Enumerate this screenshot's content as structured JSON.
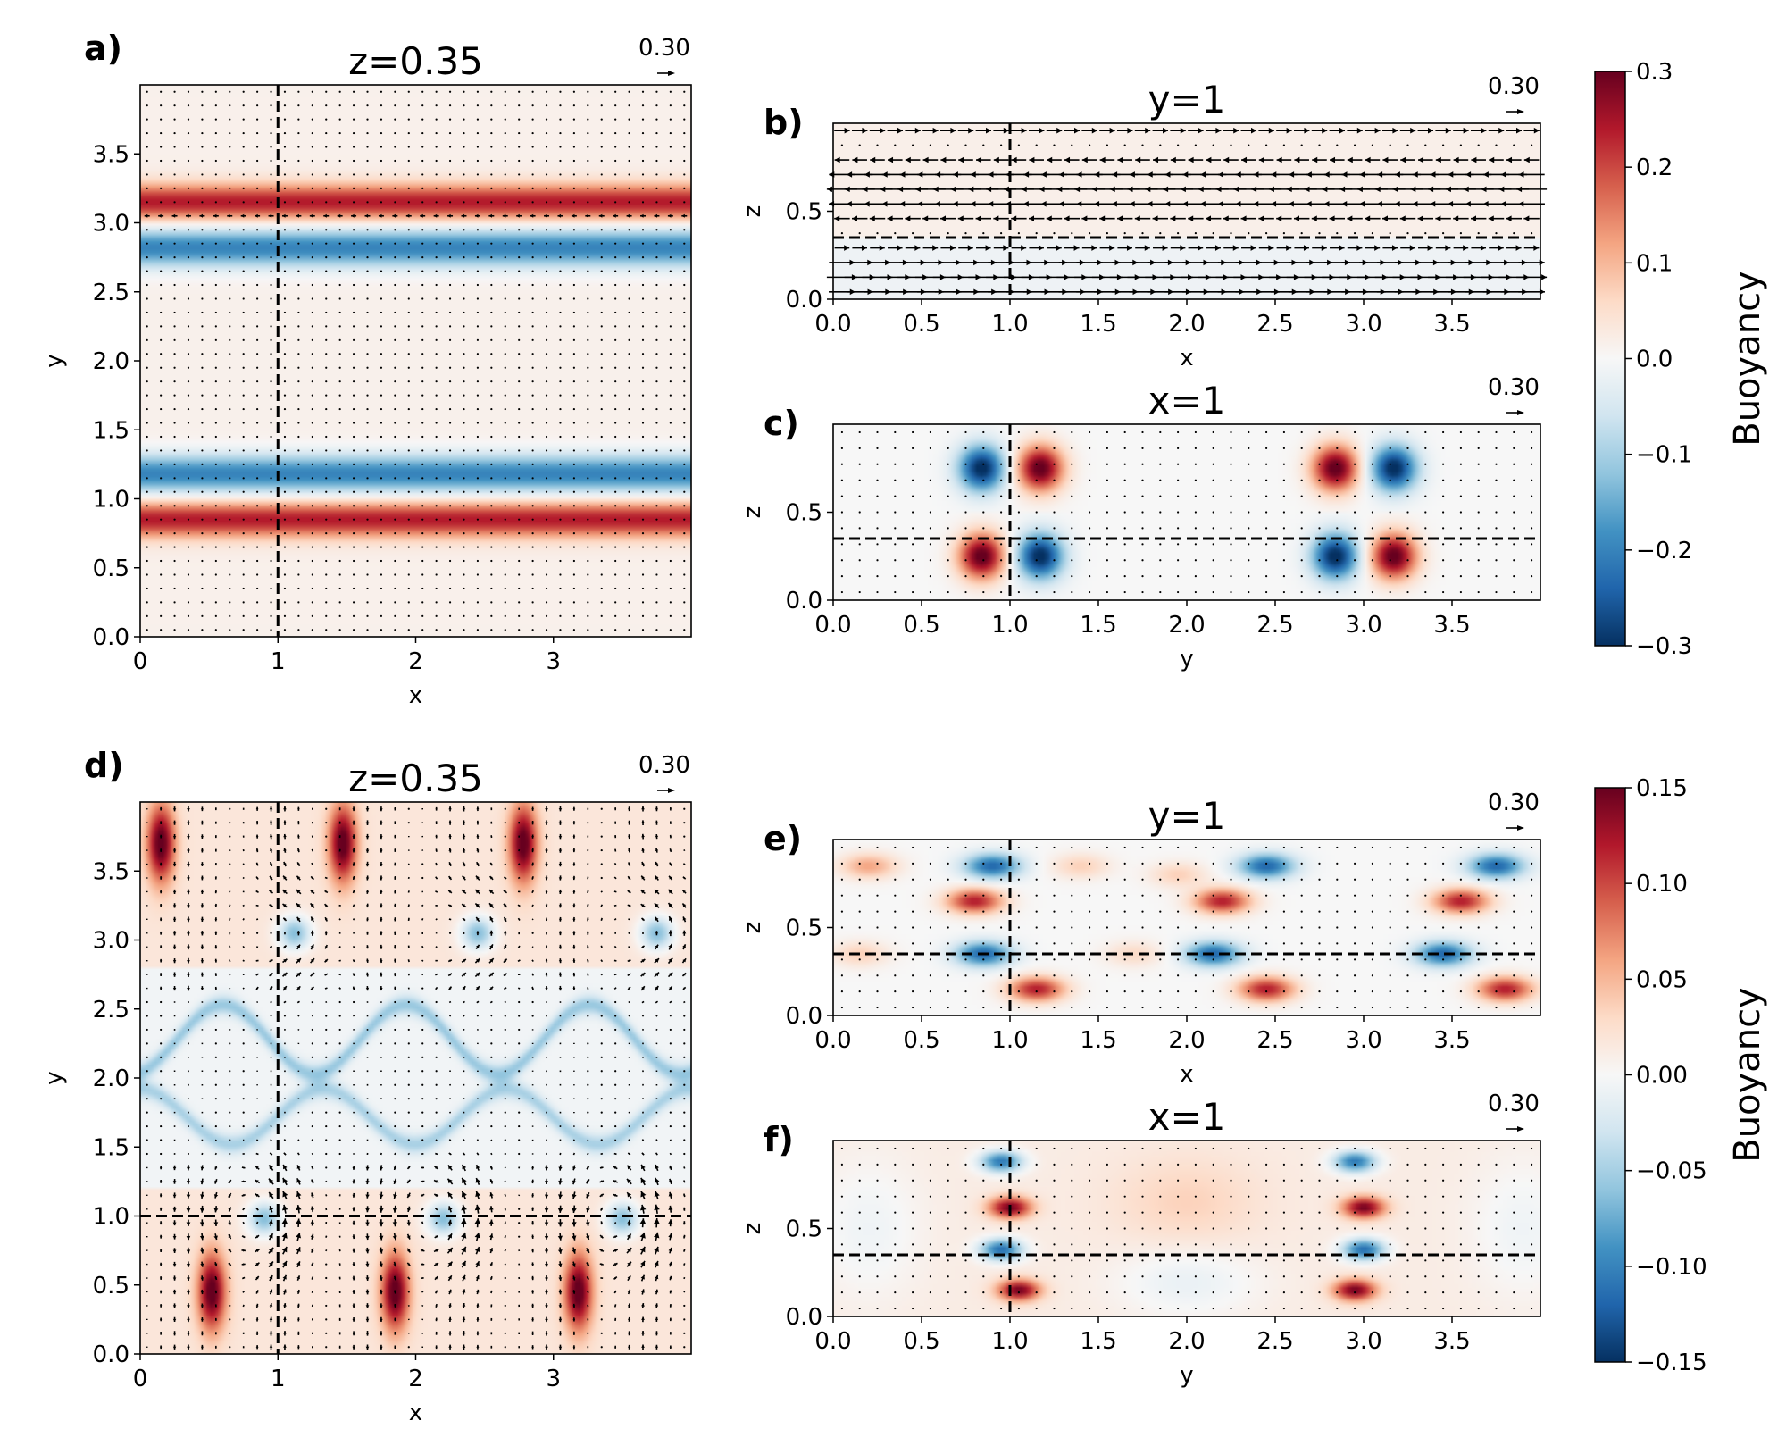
{
  "figure": {
    "colormap": "RdBu_r",
    "arrow_color": "#000000",
    "line_color": "#000000"
  },
  "chart_data": [
    {
      "id": "a",
      "type": "heatmap",
      "letter": "a)",
      "title": "z=0.35",
      "xlabel": "x",
      "ylabel": "y",
      "xlim": [
        0,
        4
      ],
      "ylim": [
        0,
        4
      ],
      "xticks": [
        0,
        1,
        2,
        3
      ],
      "xtick_labels": [
        "0",
        "1",
        "2",
        "3"
      ],
      "yticks": [
        0.0,
        0.5,
        1.0,
        1.5,
        2.0,
        2.5,
        3.0,
        3.5
      ],
      "ytick_labels": [
        "0.0",
        "0.5",
        "1.0",
        "1.5",
        "2.0",
        "2.5",
        "3.0",
        "3.5"
      ],
      "field": "a_xy",
      "vmax": 0.3,
      "dashed_lines": {
        "vertical": [
          1.0
        ],
        "horizontal": []
      },
      "quiver_key": "0.30"
    },
    {
      "id": "b",
      "type": "heatmap",
      "letter": "b)",
      "title": "y=1",
      "xlabel": "x",
      "ylabel": "z",
      "xlim": [
        0,
        4
      ],
      "ylim": [
        0,
        1
      ],
      "xticks": [
        0.0,
        0.5,
        1.0,
        1.5,
        2.0,
        2.5,
        3.0,
        3.5
      ],
      "xtick_labels": [
        "0.0",
        "0.5",
        "1.0",
        "1.5",
        "2.0",
        "2.5",
        "3.0",
        "3.5"
      ],
      "yticks": [
        0.0,
        0.5
      ],
      "ytick_labels": [
        "0.0",
        "0.5"
      ],
      "field": "a_xz",
      "vmax": 0.3,
      "dashed_lines": {
        "vertical": [
          1.0
        ],
        "horizontal": [
          0.35
        ]
      },
      "quiver_key": "0.30"
    },
    {
      "id": "c",
      "type": "heatmap",
      "letter": "c)",
      "title": "x=1",
      "xlabel": "y",
      "ylabel": "z",
      "xlim": [
        0,
        4
      ],
      "ylim": [
        0,
        1
      ],
      "xticks": [
        0.0,
        0.5,
        1.0,
        1.5,
        2.0,
        2.5,
        3.0,
        3.5
      ],
      "xtick_labels": [
        "0.0",
        "0.5",
        "1.0",
        "1.5",
        "2.0",
        "2.5",
        "3.0",
        "3.5"
      ],
      "yticks": [
        0.0,
        0.5
      ],
      "ytick_labels": [
        "0.0",
        "0.5"
      ],
      "field": "a_yz",
      "vmax": 0.3,
      "dashed_lines": {
        "vertical": [
          1.0
        ],
        "horizontal": [
          0.35
        ]
      },
      "quiver_key": "0.30"
    },
    {
      "id": "d",
      "type": "heatmap",
      "letter": "d)",
      "title": "z=0.35",
      "xlabel": "x",
      "ylabel": "y",
      "xlim": [
        0,
        4
      ],
      "ylim": [
        0,
        4
      ],
      "xticks": [
        0,
        1,
        2,
        3
      ],
      "xtick_labels": [
        "0",
        "1",
        "2",
        "3"
      ],
      "yticks": [
        0.0,
        0.5,
        1.0,
        1.5,
        2.0,
        2.5,
        3.0,
        3.5
      ],
      "ytick_labels": [
        "0.0",
        "0.5",
        "1.0",
        "1.5",
        "2.0",
        "2.5",
        "3.0",
        "3.5"
      ],
      "field": "d_xy",
      "vmax": 0.15,
      "dashed_lines": {
        "vertical": [
          1.0
        ],
        "horizontal": [
          1.0
        ]
      },
      "quiver_key": "0.30"
    },
    {
      "id": "e",
      "type": "heatmap",
      "letter": "e)",
      "title": "y=1",
      "xlabel": "x",
      "ylabel": "z",
      "xlim": [
        0,
        4
      ],
      "ylim": [
        0,
        1
      ],
      "xticks": [
        0.0,
        0.5,
        1.0,
        1.5,
        2.0,
        2.5,
        3.0,
        3.5
      ],
      "xtick_labels": [
        "0.0",
        "0.5",
        "1.0",
        "1.5",
        "2.0",
        "2.5",
        "3.0",
        "3.5"
      ],
      "yticks": [
        0.0,
        0.5
      ],
      "ytick_labels": [
        "0.0",
        "0.5"
      ],
      "field": "d_xz",
      "vmax": 0.15,
      "dashed_lines": {
        "vertical": [
          1.0
        ],
        "horizontal": [
          0.35
        ]
      },
      "quiver_key": "0.30"
    },
    {
      "id": "f",
      "type": "heatmap",
      "letter": "f)",
      "title": "x=1",
      "xlabel": "y",
      "ylabel": "z",
      "xlim": [
        0,
        4
      ],
      "ylim": [
        0,
        1
      ],
      "xticks": [
        0.0,
        0.5,
        1.0,
        1.5,
        2.0,
        2.5,
        3.0,
        3.5
      ],
      "xtick_labels": [
        "0.0",
        "0.5",
        "1.0",
        "1.5",
        "2.0",
        "2.5",
        "3.0",
        "3.5"
      ],
      "yticks": [
        0.0,
        0.5
      ],
      "ytick_labels": [
        "0.0",
        "0.5"
      ],
      "field": "d_yz",
      "vmax": 0.15,
      "dashed_lines": {
        "vertical": [
          1.0
        ],
        "horizontal": [
          0.35
        ]
      },
      "quiver_key": "0.30"
    }
  ],
  "colorbars": [
    {
      "id": "top",
      "label": "Buoyancy",
      "vmin": -0.3,
      "vmax": 0.3,
      "ticks": [
        0.3,
        0.2,
        0.1,
        0.0,
        -0.1,
        -0.2,
        -0.3
      ],
      "tick_labels": [
        "0.3",
        "0.2",
        "0.1",
        "0.0",
        "−0.1",
        "−0.2",
        "−0.3"
      ]
    },
    {
      "id": "bottom",
      "label": "Buoyancy",
      "vmin": -0.15,
      "vmax": 0.15,
      "ticks": [
        0.15,
        0.1,
        0.05,
        0.0,
        -0.05,
        -0.1,
        -0.15
      ],
      "tick_labels": [
        "0.15",
        "0.10",
        "0.05",
        "0.00",
        "−0.05",
        "−0.10",
        "−0.15"
      ]
    }
  ]
}
